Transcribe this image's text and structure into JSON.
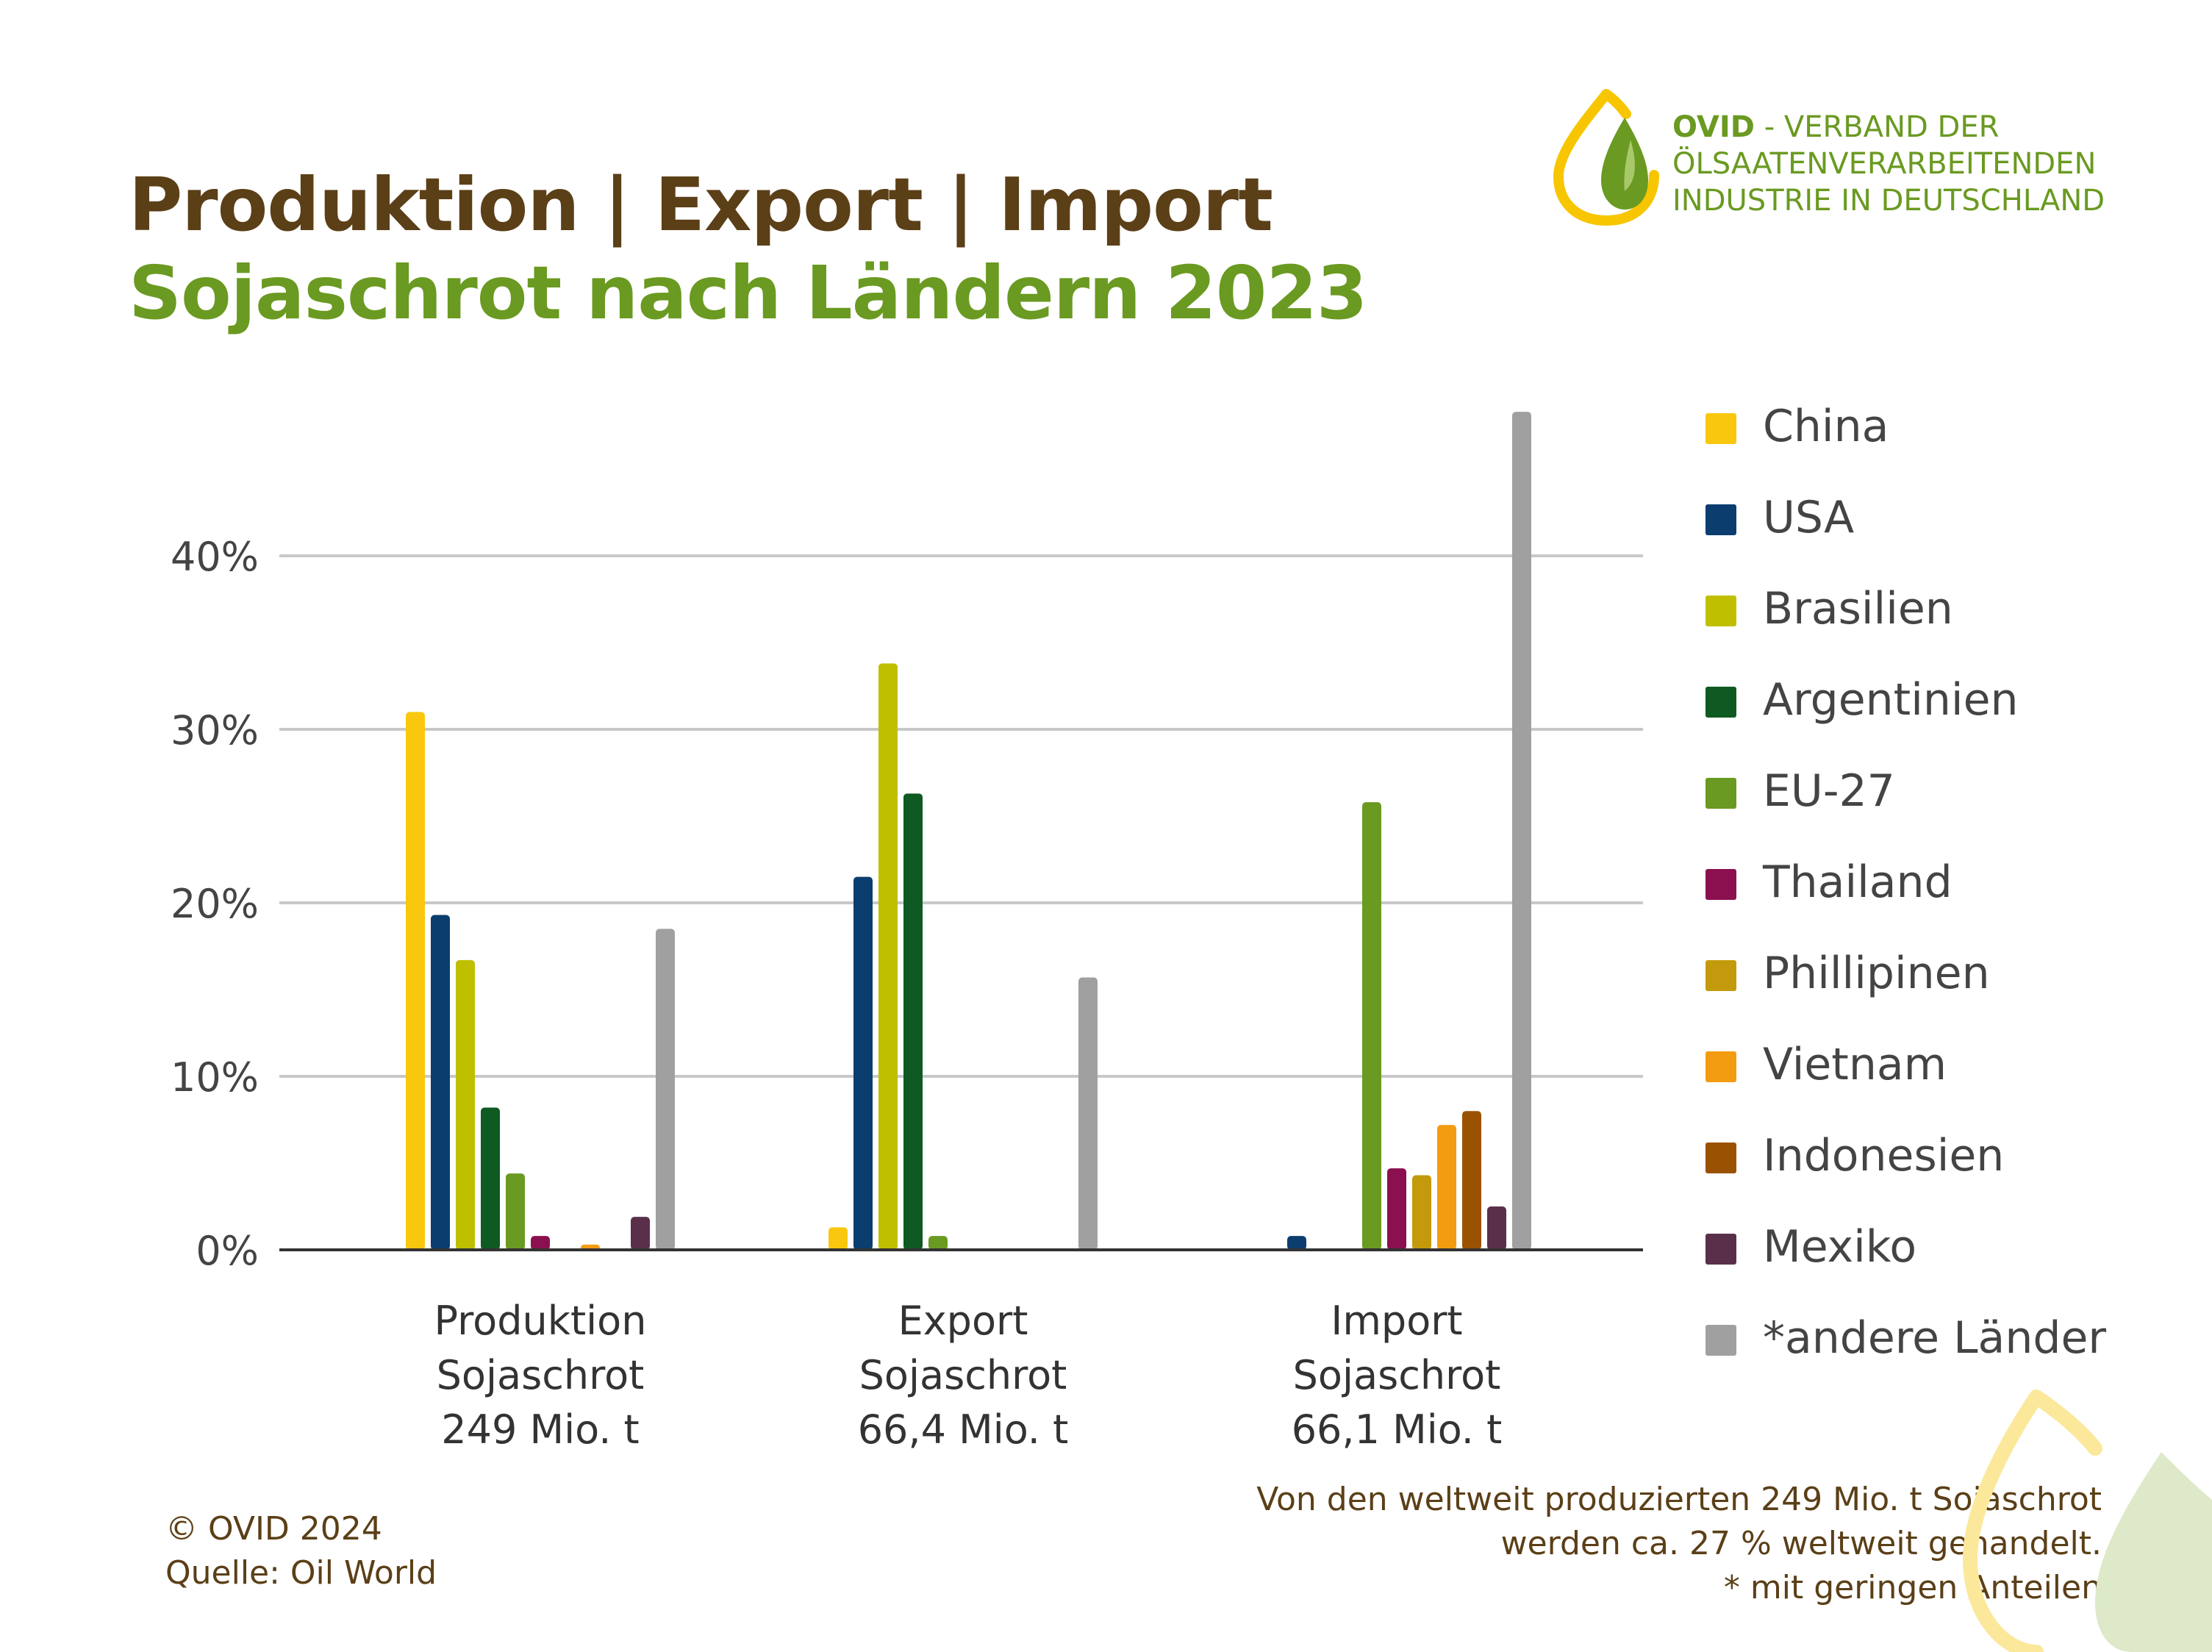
{
  "header": {
    "title": "Produktion | Export | Import",
    "subtitle": "Sojaschrot nach Ländern 2023"
  },
  "logo": {
    "brand": "OVID",
    "line1_rest": " - VERBAND DER",
    "line2": "ÖLSAATENVERARBEITENDEN",
    "line3": "INDUSTRIE IN DEUTSCHLAND",
    "icon": "oil-drop-icon"
  },
  "footer": {
    "copyright": "© OVID 2024",
    "source": "Quelle: Oil World",
    "note_line1": "Von den weltweit produzierten 249 Mio. t Sojaschrot",
    "note_line2": "werden ca. 27 % weltweit gehandelt.",
    "note_line3": "* mit geringen Anteilen"
  },
  "chart_data": {
    "type": "bar",
    "categories": [
      [
        "Produktion",
        "Sojaschrot",
        "249 Mio. t"
      ],
      [
        "Export",
        "Sojaschrot",
        "66,4 Mio. t"
      ],
      [
        "Import",
        "Sojaschrot",
        "66,1 Mio. t"
      ]
    ],
    "ylim": [
      0,
      50
    ],
    "yticks": [
      0,
      10,
      20,
      30,
      40
    ],
    "ytick_labels": [
      "0%",
      "10%",
      "20%",
      "30%",
      "40%"
    ],
    "grid": true,
    "legend_position": "right",
    "series": [
      {
        "name": "China",
        "color": "#f9c80e",
        "values": [
          31,
          1.3,
          0
        ]
      },
      {
        "name": "USA",
        "color": "#0b3d6e",
        "values": [
          19.3,
          21.5,
          0.8
        ]
      },
      {
        "name": "Brasilien",
        "color": "#bfbf00",
        "values": [
          16.7,
          33.8,
          0
        ]
      },
      {
        "name": "Argentinien",
        "color": "#0e5a22",
        "values": [
          8.2,
          26.3,
          0
        ]
      },
      {
        "name": "EU-27",
        "color": "#6a9a21",
        "values": [
          4.4,
          0.8,
          25.8
        ]
      },
      {
        "name": "Thailand",
        "color": "#8b1050",
        "values": [
          0.8,
          0,
          4.7
        ]
      },
      {
        "name": "Phillipinen",
        "color": "#c39a0b",
        "values": [
          0,
          0,
          4.3
        ]
      },
      {
        "name": "Vietnam",
        "color": "#f39c12",
        "values": [
          0.3,
          0,
          7.2
        ]
      },
      {
        "name": "Indonesien",
        "color": "#9b5200",
        "values": [
          0,
          0,
          8.0
        ]
      },
      {
        "name": "Mexiko",
        "color": "#5a2f4a",
        "values": [
          1.9,
          0,
          2.5
        ]
      },
      {
        "name": "*andere Länder",
        "color": "#a0a0a0",
        "values": [
          18.5,
          15.7,
          48.3
        ]
      }
    ]
  }
}
